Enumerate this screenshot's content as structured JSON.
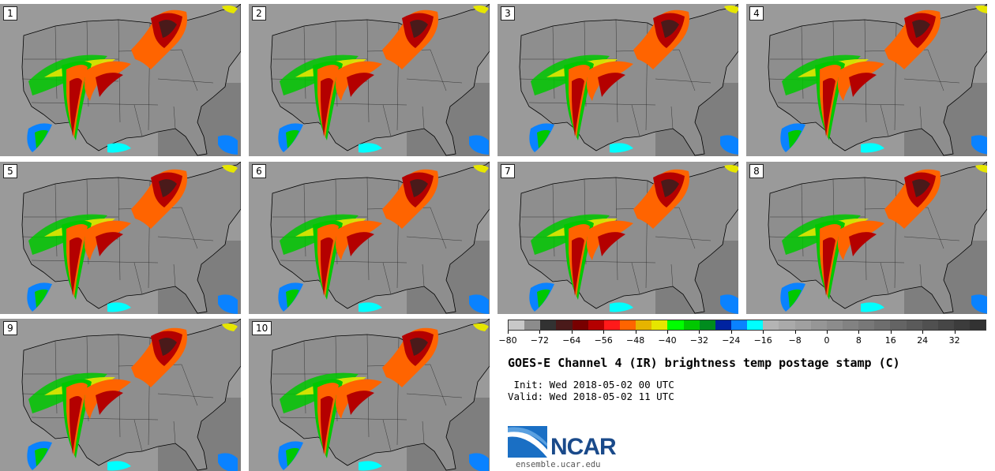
{
  "panels": [
    {
      "label": "1"
    },
    {
      "label": "2"
    },
    {
      "label": "3"
    },
    {
      "label": "4"
    },
    {
      "label": "5"
    },
    {
      "label": "6"
    },
    {
      "label": "7"
    },
    {
      "label": "8"
    },
    {
      "label": "9"
    },
    {
      "label": "10"
    }
  ],
  "colorbar": {
    "colors": [
      "#c8c8c8",
      "#8c8c8c",
      "#323232",
      "#4a1a1a",
      "#780000",
      "#b40000",
      "#ff1a1a",
      "#ff6400",
      "#e6b400",
      "#e6e600",
      "#00ff00",
      "#00c800",
      "#008c1e",
      "#0023a0",
      "#0a82ff",
      "#00ffff",
      "#b4b4b4",
      "#aaaaaa",
      "#a0a0a0",
      "#969696",
      "#8c8c8c",
      "#828282",
      "#787878",
      "#6e6e6e",
      "#646464",
      "#5a5a5a",
      "#505050",
      "#464646",
      "#3c3c3c",
      "#323232"
    ],
    "tick_labels": [
      "−80",
      "−72",
      "−64",
      "−56",
      "−48",
      "−40",
      "−32",
      "−24",
      "−16",
      "−8",
      "0",
      "8",
      "16",
      "24",
      "32"
    ],
    "min": -80,
    "max": 40
  },
  "title": "GOES-E Channel 4 (IR) brightness temp postage stamp (C)",
  "init_line": " Init: Wed 2018-05-02 00 UTC",
  "valid_line": "Valid: Wed 2018-05-02 11 UTC",
  "logo_text": "NCAR",
  "url": "ensemble.ucar.edu"
}
